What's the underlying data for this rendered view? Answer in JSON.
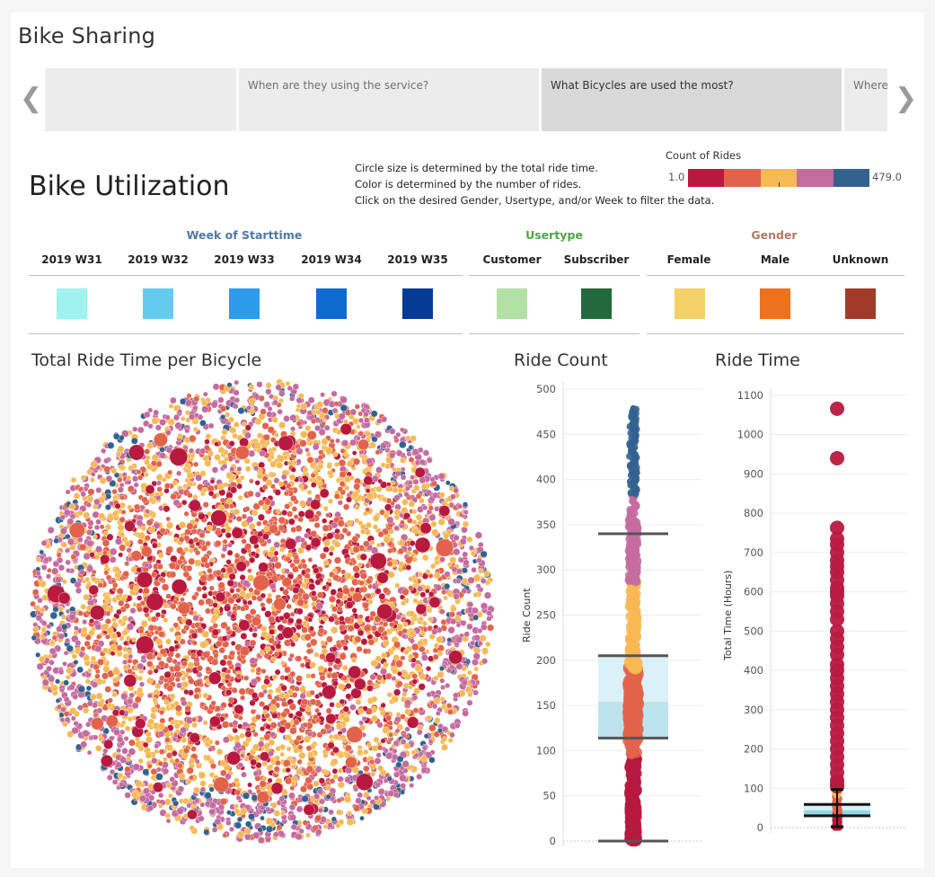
{
  "story": {
    "title": "Bike Sharing",
    "points": [
      {
        "label": ""
      },
      {
        "label": "When are they using the service?"
      },
      {
        "label": "What Bicycles are used the most?"
      },
      {
        "label": "Where"
      }
    ],
    "prev_glyph": "❮",
    "next_glyph": "❯"
  },
  "dashboard": {
    "title": "Bike Utilization",
    "instructions": [
      "Circle size is determined by the total ride time.",
      "Color is determined by the number of rides.",
      "Click on the desired Gender, Usertype, and/or Week to filter the data."
    ],
    "legend": {
      "title": "Count of Rides",
      "min": "1.0",
      "max": "479.0",
      "colors": [
        "#b8193f",
        "#e2634b",
        "#f7b955",
        "#c46ba0",
        "#33628f"
      ]
    }
  },
  "filters": {
    "week": {
      "title": "Week of Starttime",
      "color": "#4e79a7",
      "items": [
        {
          "label": "2019 W31",
          "color": "#9ff2ee"
        },
        {
          "label": "2019 W32",
          "color": "#64cbee"
        },
        {
          "label": "2019 W33",
          "color": "#2c9bec"
        },
        {
          "label": "2019 W34",
          "color": "#0e6bce"
        },
        {
          "label": "2019 W35",
          "color": "#053b94"
        }
      ]
    },
    "usertype": {
      "title": "Usertype",
      "color": "#4fa348",
      "items": [
        {
          "label": "Customer",
          "color": "#b3e0a6"
        },
        {
          "label": "Subscriber",
          "color": "#24693d"
        }
      ]
    },
    "gender": {
      "title": "Gender",
      "color": "#b07a63",
      "items": [
        {
          "label": "Female",
          "color": "#f3d068"
        },
        {
          "label": "Male",
          "color": "#ee711e"
        },
        {
          "label": "Unknown",
          "color": "#a03b2a"
        }
      ]
    }
  },
  "chart_data": [
    {
      "type": "bubble-pack",
      "title": "Total Ride Time per Bicycle",
      "encoding": {
        "size": "total ride time",
        "color": "count of rides"
      },
      "color_range": [
        1.0,
        479.0
      ]
    },
    {
      "type": "box-strip",
      "title": "Ride Count",
      "ylabel": "Ride Count",
      "ylim": [
        0,
        500
      ],
      "yticks": [
        0,
        50,
        100,
        150,
        200,
        250,
        300,
        350,
        400,
        450,
        500
      ],
      "box": {
        "lower_whisker": 0,
        "q1": 114,
        "median": 154,
        "q3": 205,
        "upper_whisker": 340
      },
      "max_point": 479,
      "box_colors": [
        "#daf2f7",
        "#bde4ec"
      ]
    },
    {
      "type": "box-strip",
      "title": "Ride Time",
      "ylabel": "Total Time (Hours)",
      "ylim": [
        0,
        1100
      ],
      "yticks": [
        0,
        100,
        200,
        300,
        400,
        500,
        600,
        700,
        800,
        900,
        1000,
        1100
      ],
      "box": {
        "lower_whisker": 2,
        "q1": 30,
        "median": 44,
        "q3": 59,
        "upper_whisker": 97
      },
      "outliers": [
        1066,
        940,
        763,
        735,
        720,
        700,
        680,
        665,
        650,
        630,
        610,
        600,
        590,
        570,
        550,
        530,
        500,
        480,
        460,
        440,
        415,
        400,
        380,
        360,
        340,
        320,
        300,
        280,
        260,
        240,
        220,
        200,
        180,
        160,
        140,
        120,
        110,
        105
      ],
      "box_colors": [
        "#d4f1f7",
        "#92d8e6"
      ]
    }
  ]
}
